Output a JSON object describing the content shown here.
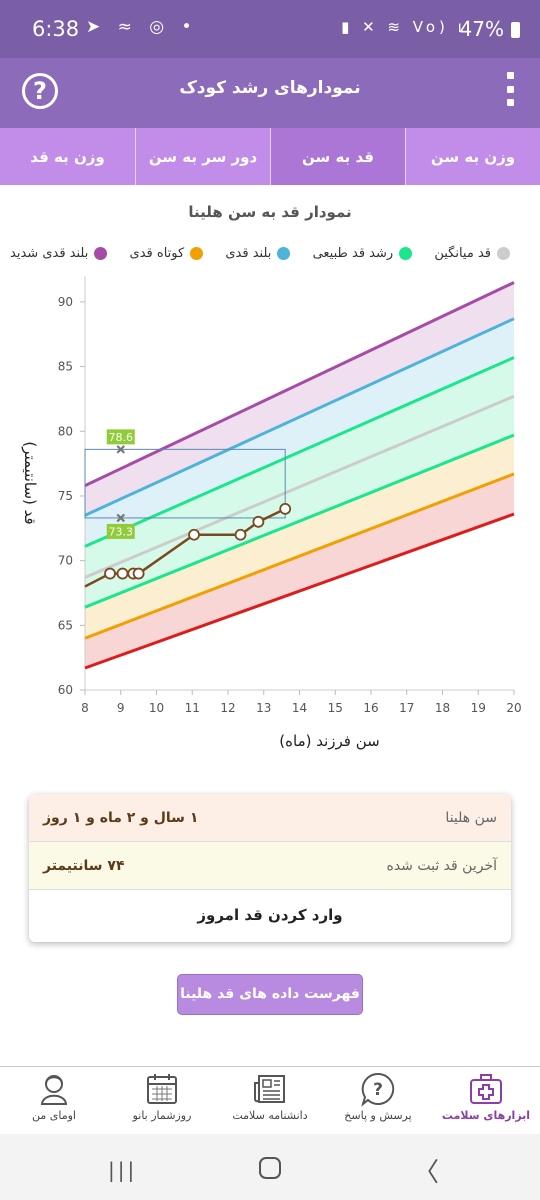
{
  "status_bar": {
    "time": "6:38",
    "notification_icons": "➤ ≈ ◎ •",
    "system_icons": "▮ ✕ ≋ Vo) ıl",
    "battery": "47%"
  },
  "app_bar": {
    "title": "نمودارهای رشد کودک",
    "help_icon": "?"
  },
  "tabs": [
    {
      "label": "وزن به قد",
      "active": false
    },
    {
      "label": "دور سر به سن",
      "active": false
    },
    {
      "label": "قد به سن",
      "active": true
    },
    {
      "label": "وزن به سن",
      "active": false
    }
  ],
  "chart_title": "نمودار قد به سن هلینا",
  "legend": [
    {
      "label": "بلند قدی شدید",
      "color": "#a64ca6"
    },
    {
      "label": "کوتاه قدی",
      "color": "#f0a000"
    },
    {
      "label": "بلند قدی",
      "color": "#4db3d9"
    },
    {
      "label": "رشد قد طبیعی",
      "color": "#1ae68c"
    },
    {
      "label": "قد میانگین",
      "color": "#cccccc"
    }
  ],
  "chart_data": {
    "type": "line",
    "xlabel": "سن فرزند (ماه)",
    "ylabel": "قد (سانتیمتر)",
    "xlim": [
      8,
      20
    ],
    "ylim": [
      60,
      92
    ],
    "x_ticks": [
      8,
      9,
      10,
      11,
      12,
      13,
      14,
      15,
      16,
      17,
      18,
      19,
      20
    ],
    "y_ticks": [
      60,
      65,
      70,
      75,
      80,
      85,
      90
    ],
    "grid": false,
    "reference_curves": [
      {
        "color": "#a64ca6",
        "x": [
          8,
          20
        ],
        "y": [
          75.8,
          91.5
        ]
      },
      {
        "color": "#4db3d9",
        "x": [
          8,
          20
        ],
        "y": [
          73.5,
          88.7
        ]
      },
      {
        "color": "#1ae68c",
        "x": [
          8,
          20
        ],
        "y": [
          71.1,
          85.7
        ]
      },
      {
        "color": "#cccccc",
        "x": [
          8,
          20
        ],
        "y": [
          68.7,
          82.7
        ]
      },
      {
        "color": "#1ae68c",
        "x": [
          8,
          20
        ],
        "y": [
          66.4,
          79.7
        ]
      },
      {
        "color": "#f0a000",
        "x": [
          8,
          20
        ],
        "y": [
          64.0,
          76.7
        ]
      },
      {
        "color": "#dd1c1c",
        "x": [
          8,
          20
        ],
        "y": [
          61.7,
          73.6
        ]
      }
    ],
    "child_series": {
      "color": "#7a4a1e",
      "x": [
        8.0,
        8.7,
        9.05,
        9.35,
        9.5,
        11.05,
        12.35,
        12.85,
        13.6
      ],
      "y": [
        68.0,
        69.0,
        69.0,
        69.0,
        69.0,
        72.0,
        72.0,
        73.0,
        74.0
      ]
    },
    "markers": [
      {
        "label": "78.6",
        "x": 9,
        "y": 78.6
      },
      {
        "label": "73.3",
        "x": 9,
        "y": 73.3
      }
    ],
    "highlight_box": {
      "x_from": 8,
      "x_to": 13.6,
      "y_from": 73.3,
      "y_to": 78.6
    }
  },
  "info_card": {
    "age_label": "سن هلینا",
    "age_value": "۱ سال و ۲ ماه و ۱ روز",
    "height_label": "آخرین قد ثبت شده",
    "height_value": "۷۴ سانتیمتر",
    "enter_button": "وارد کردن قد امروز"
  },
  "list_button": "فهرست داده های قد هلینا",
  "bottom_nav": [
    {
      "label": "اومای من",
      "icon": "user-icon",
      "active": false
    },
    {
      "label": "روزشمار بانو",
      "icon": "calendar-icon",
      "active": false
    },
    {
      "label": "دانشنامه سلامت",
      "icon": "newspaper-icon",
      "active": false
    },
    {
      "label": "پرسش و پاسخ",
      "icon": "question-bubble-icon",
      "active": false
    },
    {
      "label": "ابزارهای سلامت",
      "icon": "medical-kit-icon",
      "active": true
    }
  ],
  "system_nav": {
    "recent": "|||",
    "back": "〈"
  }
}
